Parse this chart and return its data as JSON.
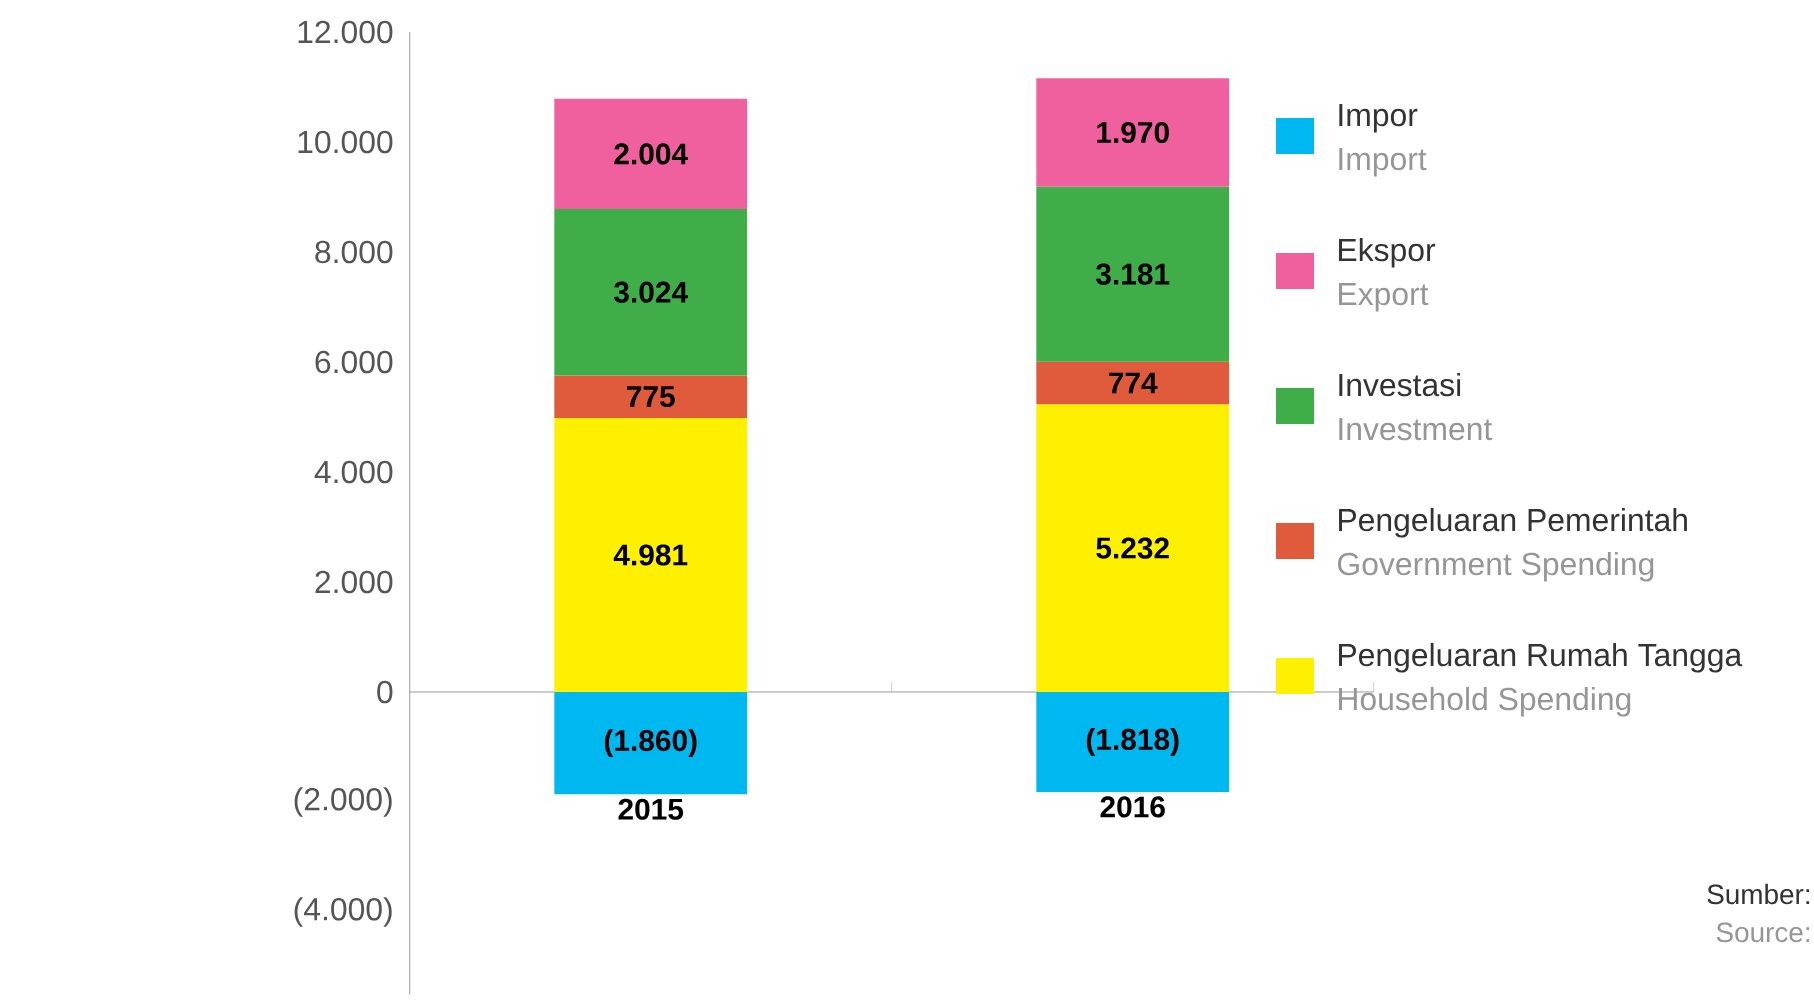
{
  "chart_data": {
    "type": "bar",
    "stacked": true,
    "categories": [
      "2015",
      "2016"
    ],
    "series": [
      {
        "name": "Pengeluaran Rumah Tangga",
        "color": "#fff000",
        "values": [
          4981,
          5232
        ],
        "value_labels": [
          "4.981",
          "5.232"
        ]
      },
      {
        "name": "Pengeluaran Pemerintah",
        "color": "#e05a3c",
        "values": [
          775,
          774
        ],
        "value_labels": [
          "775",
          "774"
        ]
      },
      {
        "name": "Investasi",
        "color": "#3fae49",
        "values": [
          3024,
          3181
        ],
        "value_labels": [
          "3.024",
          "3.181"
        ]
      },
      {
        "name": "Ekspor",
        "color": "#f0609e",
        "values": [
          2004,
          1970
        ],
        "value_labels": [
          "2.004",
          "1.970"
        ]
      },
      {
        "name": "Impor",
        "color": "#00b8f0",
        "values": [
          -1860,
          -1818
        ],
        "value_labels": [
          "(1.860)",
          "(1.818)"
        ]
      }
    ],
    "ylim": [
      -5500,
      12000
    ],
    "yticks": [
      {
        "value": -4000,
        "label": "(4.000)"
      },
      {
        "value": -2000,
        "label": "(2.000)"
      },
      0,
      {
        "value": 2000,
        "label": "2.000"
      },
      {
        "value": 4000,
        "label": "4.000"
      },
      {
        "value": 6000,
        "label": "6.000"
      },
      {
        "value": 8000,
        "label": "8.000"
      },
      {
        "value": 10000,
        "label": "10.000"
      },
      {
        "value": 12000,
        "label": "12.000"
      }
    ],
    "legend": "right",
    "annotations": [
      "Household Spending",
      "Government Spending",
      "Investment",
      "Export",
      "Import",
      "Sumber:",
      "Source:"
    ]
  }
}
